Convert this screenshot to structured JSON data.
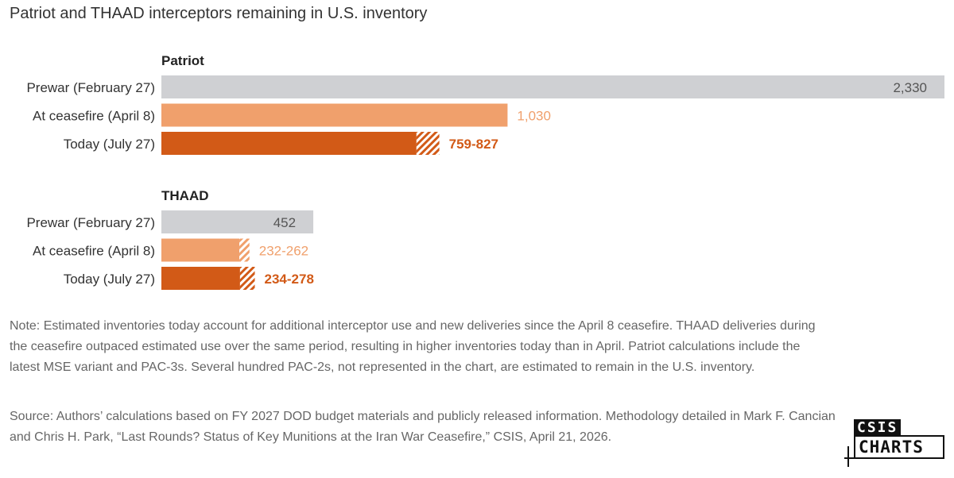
{
  "title": "Patriot and THAAD interceptors remaining in U.S. inventory",
  "colors": {
    "prewar": "#cfd0d3",
    "ceasefire": "#f0a06c",
    "today": "#d25a17",
    "prewar_label": "#555555"
  },
  "chart_data": [
    {
      "type": "bar",
      "orientation": "horizontal",
      "title": "Patriot",
      "categories": [
        "Prewar (February 27)",
        "At ceasefire (April 8)",
        "Today (July 27)"
      ],
      "values": [
        [
          2330,
          2330
        ],
        [
          1030,
          1030
        ],
        [
          759,
          827
        ]
      ],
      "labels": [
        "2,330",
        "1,030",
        "759-827"
      ],
      "range_shown_as": "hatched segment"
    },
    {
      "type": "bar",
      "orientation": "horizontal",
      "title": "THAAD",
      "categories": [
        "Prewar (February 27)",
        "At ceasefire (April 8)",
        "Today (July 27)"
      ],
      "values": [
        [
          452,
          452
        ],
        [
          232,
          262
        ],
        [
          234,
          278
        ]
      ],
      "labels": [
        "452",
        "232-262",
        "234-278"
      ],
      "range_shown_as": "hatched segment"
    }
  ],
  "note": "Note: Estimated inventories today account for additional interceptor use and new deliveries since the April 8 ceasefire. THAAD deliveries during the ceasefire outpaced estimated use over the same period, resulting in higher inventories today than in April. Patriot calculations include the latest MSE variant and PAC-3s. Several hundred PAC-2s, not represented in the chart, are estimated to remain in the U.S. inventory.",
  "source": "Source: Authors’ calculations based on FY 2027 DOD budget materials and publicly released information. Methodology detailed in Mark F. Cancian and Chris H. Park, “Last Rounds? Status of Key Munitions at the Iran War Ceasefire,” CSIS, April 21, 2026.",
  "logo": {
    "top": "CSIS",
    "bottom": "CHARTS"
  }
}
